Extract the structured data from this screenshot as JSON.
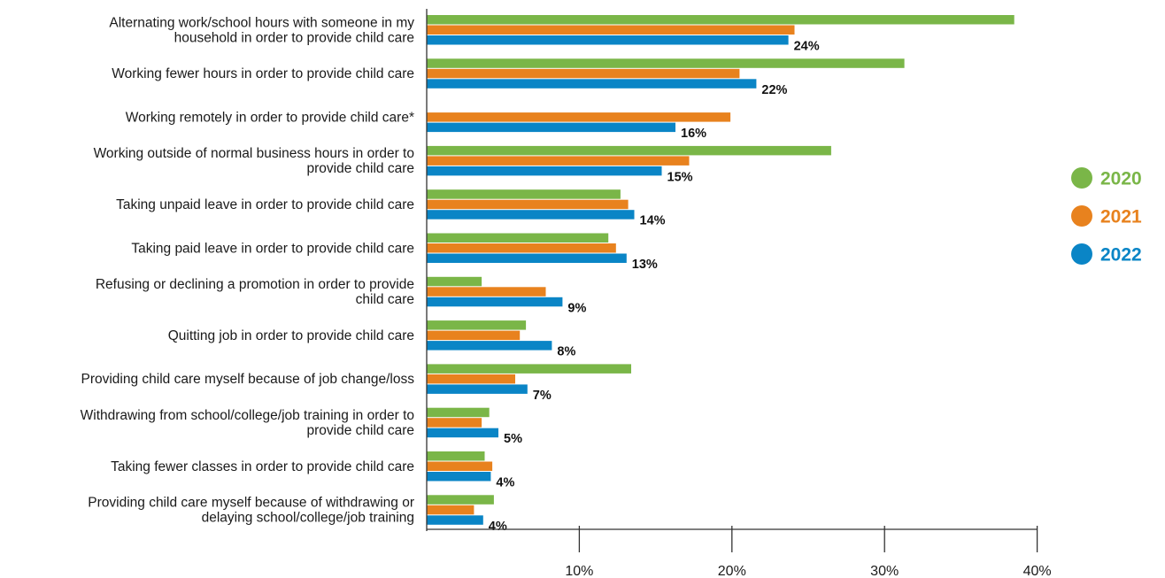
{
  "chart_data": {
    "type": "bar",
    "orientation": "horizontal",
    "title": "",
    "xlabel": "",
    "ylabel": "",
    "xlim": [
      0,
      40
    ],
    "x_ticks": [
      "10%",
      "20%",
      "30%",
      "40%"
    ],
    "legend_position": "right",
    "categories": [
      [
        "Alternating work/school hours with someone in my",
        "household in order to provide child care"
      ],
      [
        "Working fewer hours in order to provide child care"
      ],
      [
        "Working remotely in order to provide child care*"
      ],
      [
        "Working outside of normal business hours in order to",
        "provide child care"
      ],
      [
        "Taking unpaid leave in order to provide child care"
      ],
      [
        "Taking paid leave in order to provide child care"
      ],
      [
        "Refusing or declining a promotion in order to provide",
        "child care"
      ],
      [
        "Quitting job in order to provide child care"
      ],
      [
        "Providing child care myself because of job change/loss"
      ],
      [
        "Withdrawing from school/college/job training in order to",
        "provide child care"
      ],
      [
        "Taking fewer classes in order to provide child care"
      ],
      [
        "Providing child care myself because of withdrawing or",
        "delaying school/college/job training"
      ]
    ],
    "series": [
      {
        "name": "2020",
        "color": "#7ab648",
        "values": [
          38.5,
          31.3,
          null,
          26.5,
          12.7,
          11.9,
          3.6,
          6.5,
          13.4,
          4.1,
          3.8,
          4.4
        ]
      },
      {
        "name": "2021",
        "color": "#e8821e",
        "values": [
          24.1,
          20.5,
          19.9,
          17.2,
          13.2,
          12.4,
          7.8,
          6.1,
          5.8,
          3.6,
          4.3,
          3.1
        ]
      },
      {
        "name": "2022",
        "color": "#0a85c6",
        "values": [
          23.7,
          21.6,
          16.3,
          15.4,
          13.6,
          13.1,
          8.9,
          8.2,
          6.6,
          4.7,
          4.2,
          3.7
        ]
      }
    ],
    "data_labels": [
      "24%",
      "22%",
      "16%",
      "15%",
      "14%",
      "13%",
      "9%",
      "8%",
      "7%",
      "5%",
      "4%",
      "4%"
    ]
  }
}
